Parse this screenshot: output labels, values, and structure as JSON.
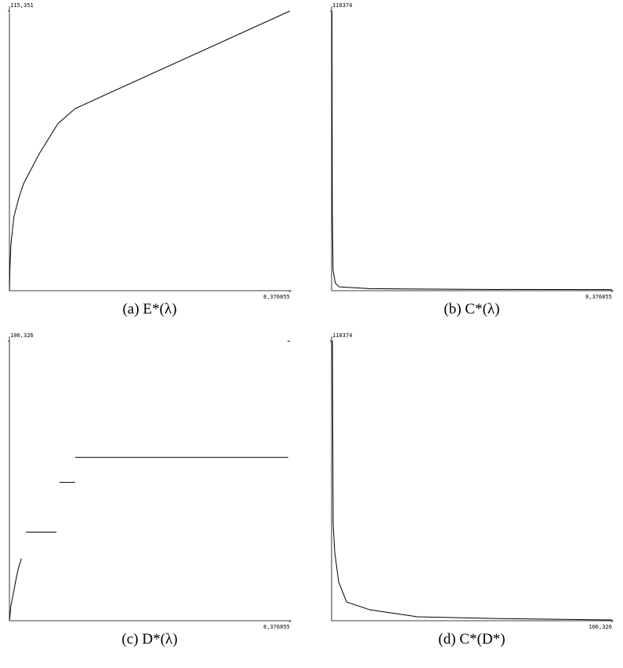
{
  "chart_data": [
    {
      "type": "line",
      "caption": "(a) E*(λ)",
      "x": [
        0,
        0.0005,
        0.002,
        0.006,
        0.013,
        0.019,
        0.04,
        0.065,
        0.088,
        0.376055
      ],
      "series": [
        {
          "color": "#000000",
          "values": [
            0,
            7.8,
            19.2,
            30.5,
            38.7,
            44.2,
            56.5,
            68.9,
            75.1,
            115.351
          ]
        }
      ],
      "xlim": [
        0,
        0.376055
      ],
      "ylim": [
        0,
        115.351
      ],
      "xticks": [
        {
          "value": 0.376055,
          "label": "0,376055"
        }
      ],
      "yticks": [
        {
          "value": 115.351,
          "label": "115,351"
        }
      ]
    },
    {
      "type": "line",
      "caption": "(b) C*(λ)",
      "x": [
        0,
        0.0005,
        0.001,
        0.002,
        0.005,
        0.01,
        0.05,
        0.2,
        0.376055
      ],
      "series": [
        {
          "color": "#000000",
          "values": [
            110374,
            110000,
            30000,
            8000,
            3000,
            1500,
            800,
            500,
            400
          ]
        }
      ],
      "xlim": [
        0,
        0.376055
      ],
      "ylim": [
        0,
        110374
      ],
      "xticks": [
        {
          "value": 0.376055,
          "label": "0,376055"
        }
      ],
      "yticks": [
        110374
      ]
    },
    {
      "type": "line",
      "caption": "(c) D*(λ)",
      "x": [
        0,
        0.002,
        0.005,
        0.008,
        0.012,
        0.016,
        0.019,
        0.022,
        0.063,
        0.065,
        0.067,
        0.088,
        0.088,
        0.088,
        0.374,
        0.375,
        0.373,
        0.376
      ],
      "series": [
        {
          "color": "#000000",
          "values": [
            0,
            5.7,
            10,
            14.6,
            20,
            23.6,
            null,
            33.7,
            33.7,
            null,
            52.6,
            52.6,
            null,
            62.1,
            62.1,
            null,
            106.3,
            106.3
          ]
        }
      ],
      "xlim": [
        0,
        0.376055
      ],
      "ylim": [
        0,
        106.326
      ],
      "xticks": [
        {
          "value": 0.376055,
          "label": "0,376055"
        }
      ],
      "yticks": [
        {
          "value": 106.326,
          "label": "106,326"
        }
      ]
    },
    {
      "type": "line",
      "caption": "(d) C*(D*)",
      "x": [
        0,
        0.3,
        0.6,
        1.2,
        2.7,
        5.7,
        14.6,
        32.6,
        61.8,
        106.326
      ],
      "series": [
        {
          "color": "#000000",
          "values": [
            110374,
            110374,
            38000,
            27000,
            15200,
            7400,
            4300,
            1550,
            900,
            300
          ]
        }
      ],
      "xlim": [
        0,
        106.326
      ],
      "ylim": [
        0,
        110374
      ],
      "xticks": [
        {
          "value": 106.326,
          "label": "106,326"
        }
      ],
      "yticks": [
        110374
      ]
    }
  ]
}
